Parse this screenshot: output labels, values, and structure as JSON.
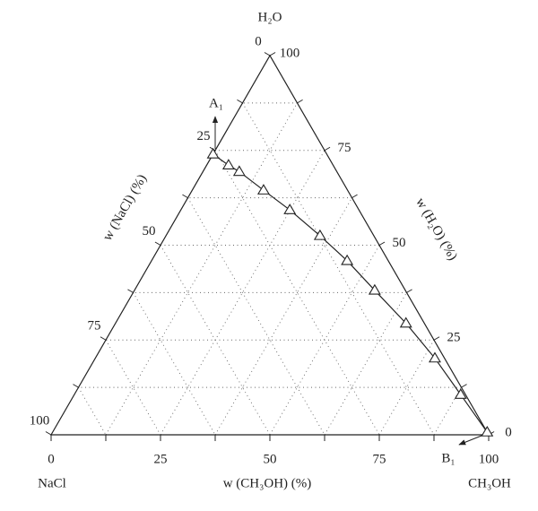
{
  "chart_data": {
    "type": "ternary",
    "vertices": {
      "top": "H₂O",
      "left": "NaCl",
      "right": "CH₃OH"
    },
    "axes": {
      "nacl": {
        "title": "w (NaCl) (%)",
        "ticks": [
          0,
          25,
          50,
          75,
          100
        ],
        "minor_ticks": [
          12.5,
          37.5,
          62.5,
          87.5
        ]
      },
      "h2o": {
        "title": "w (H₂O) (%)",
        "ticks": [
          0,
          25,
          50,
          75,
          100
        ],
        "minor_ticks": [
          12.5,
          37.5,
          62.5,
          87.5
        ]
      },
      "ch3oh": {
        "title": "w (CH₃OH) (%)",
        "ticks": [
          0,
          25,
          50,
          75,
          100
        ],
        "minor_ticks": [
          12.5,
          37.5,
          62.5,
          87.5
        ]
      }
    },
    "grid": true,
    "color": "#222222",
    "nacl": [
      26,
      23.9,
      22.3,
      19.2,
      15.8,
      12.3,
      9.4,
      7.0,
      4.2,
      2.2,
      1.1,
      0
    ],
    "ch3oh": [
      0,
      5.0,
      8.3,
      16.3,
      24.9,
      35.2,
      44.7,
      54.9,
      66.4,
      77.6,
      88.3,
      99.3
    ],
    "h2o": [
      74,
      71.1,
      69.4,
      64.5,
      59.3,
      52.5,
      45.9,
      38.1,
      29.4,
      20.2,
      10.6,
      0.7
    ],
    "annotations": [
      "A₁",
      "B₁"
    ]
  }
}
